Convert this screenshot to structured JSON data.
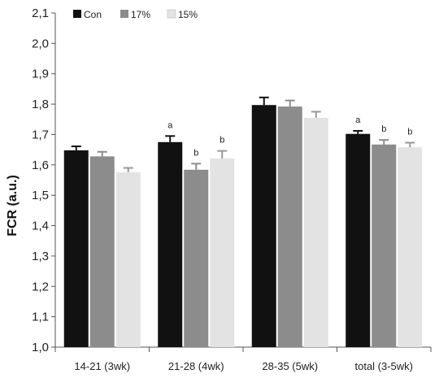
{
  "chart_data": {
    "type": "bar",
    "title": "",
    "xlabel": "",
    "ylabel": "FCR (a.u.)",
    "ylim": [
      1.0,
      2.1
    ],
    "yticks": [
      "1,0",
      "1,1",
      "1,2",
      "1,3",
      "1,4",
      "1,5",
      "1,6",
      "1,7",
      "1,8",
      "1,9",
      "2,0",
      "2,1"
    ],
    "categories": [
      "14-21 (3wk)",
      "21-28 (4wk)",
      "28-35 (5wk)",
      "total (3-5wk)"
    ],
    "legend_position": "top-left",
    "grid": false,
    "series": [
      {
        "name": "Con",
        "color": "#111111",
        "values": [
          1.648,
          1.675,
          1.797,
          1.702
        ],
        "errors": [
          0.013,
          0.02,
          0.025,
          0.01
        ],
        "letters": [
          "",
          "a",
          "",
          "a"
        ]
      },
      {
        "name": "17%",
        "color": "#8c8c8c",
        "values": [
          1.628,
          1.584,
          1.792,
          1.667
        ],
        "errors": [
          0.015,
          0.02,
          0.02,
          0.015
        ],
        "letters": [
          "",
          "b",
          "",
          "b"
        ]
      },
      {
        "name": "15%",
        "color": "#e3e3e3",
        "values": [
          1.576,
          1.621,
          1.755,
          1.658
        ],
        "errors": [
          0.014,
          0.025,
          0.02,
          0.015
        ],
        "letters": [
          "",
          "b",
          "",
          "b"
        ]
      }
    ]
  }
}
